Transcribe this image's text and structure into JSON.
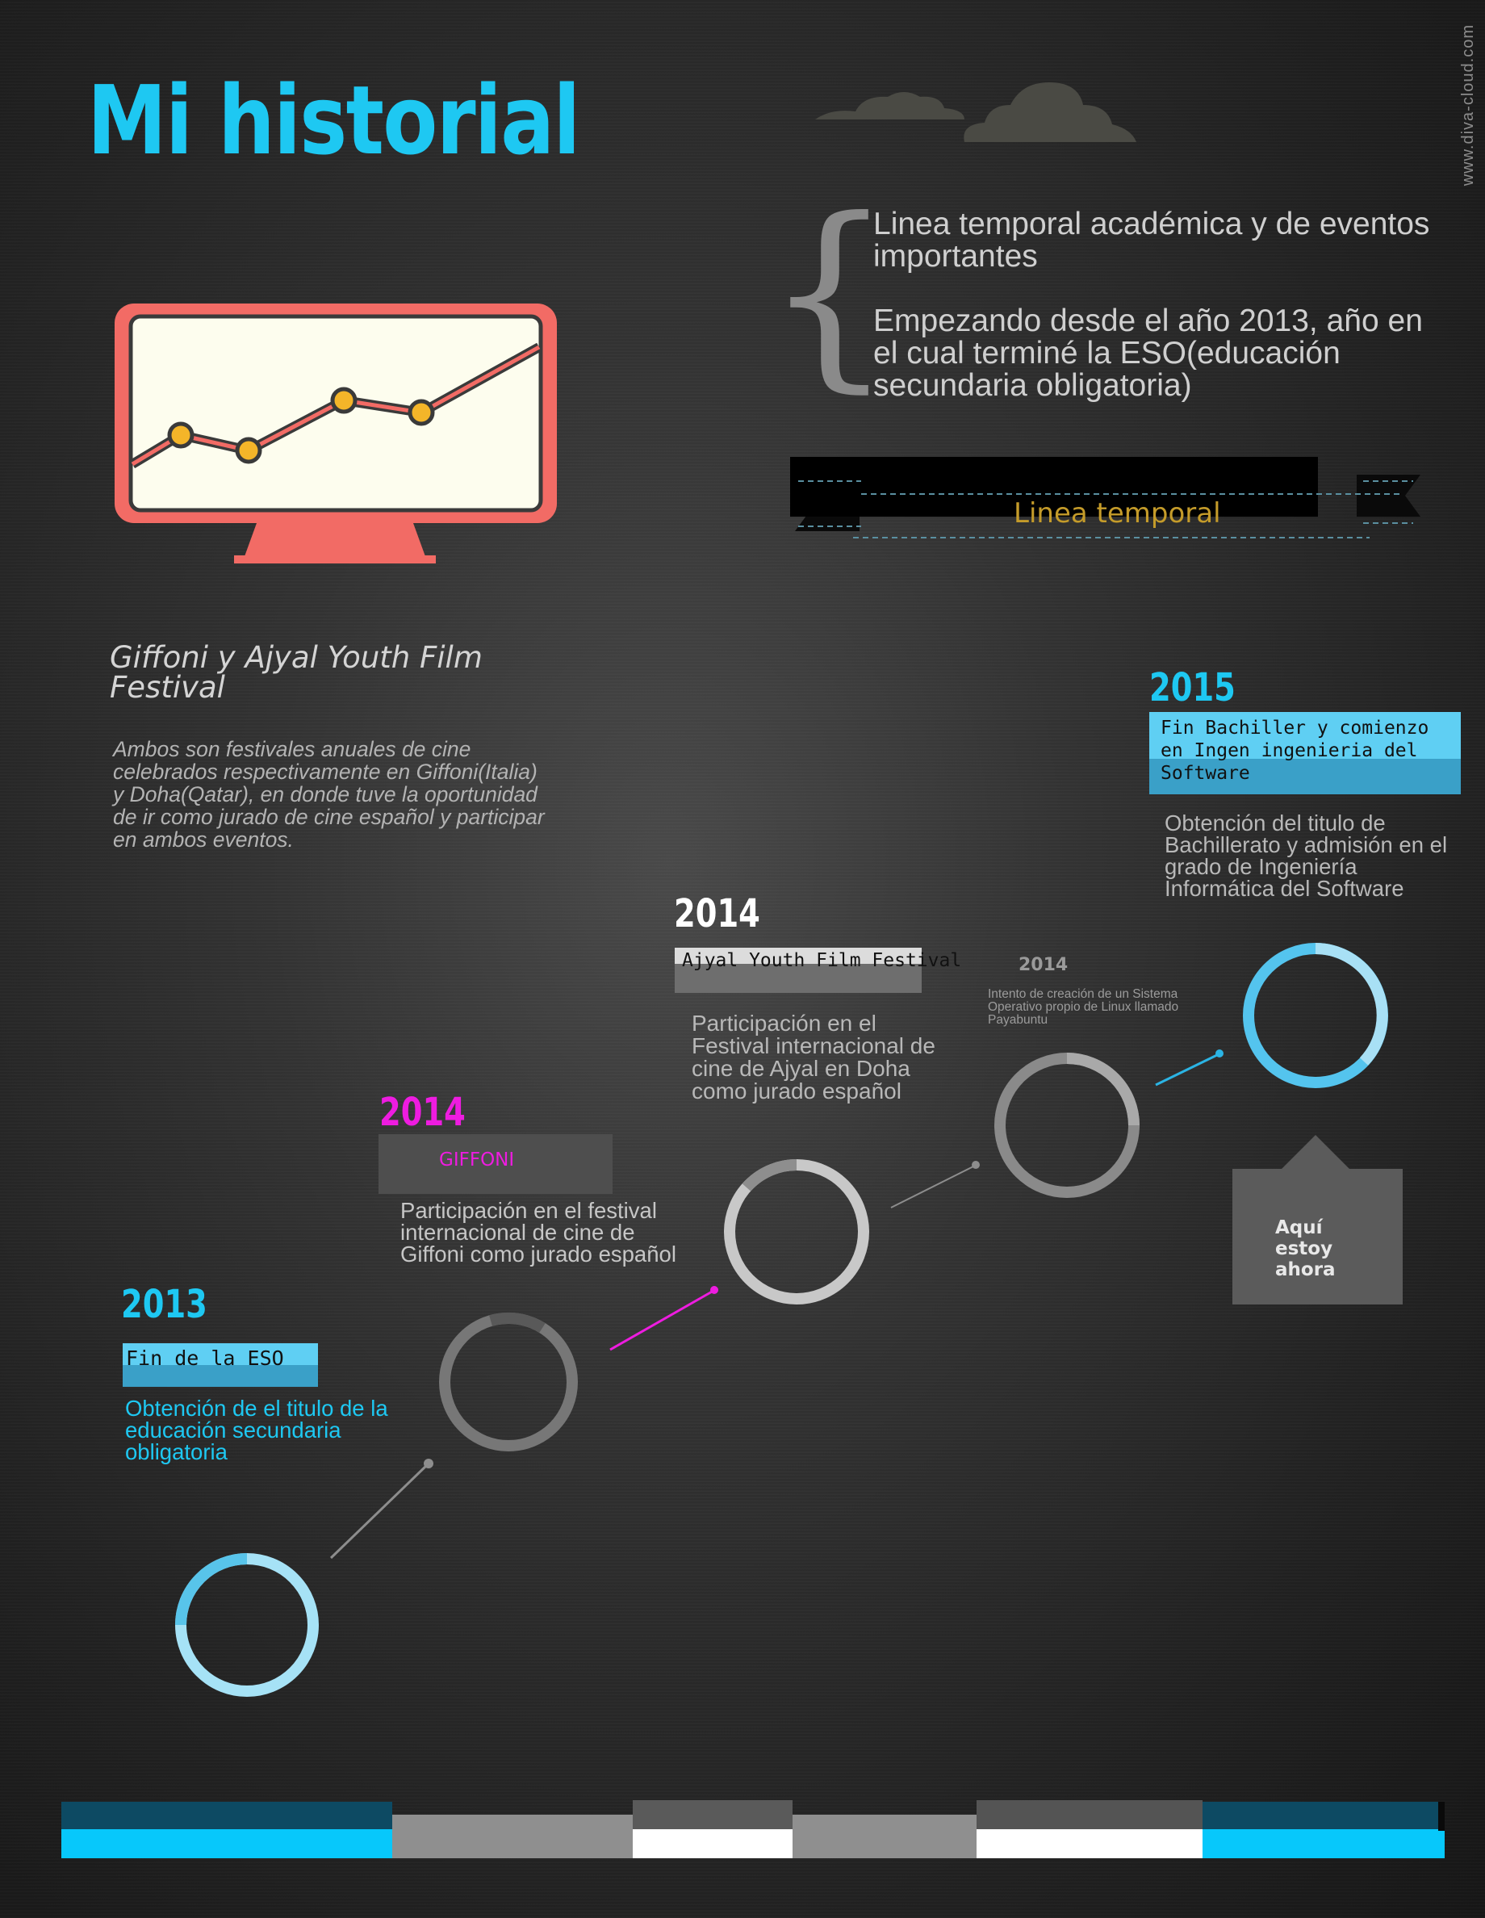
{
  "header": {
    "title": "Mi historial",
    "watermark": "www.diva-cloud.com"
  },
  "intro": {
    "line1": "Linea temporal académica y de eventos importantes",
    "line2": "Empezando desde el año 2013, año en el cual terminé la ESO(educación secundaria obligatoria)"
  },
  "ribbon": {
    "label": "Linea temporal"
  },
  "festival": {
    "title": "Giffoni y Ajyal Youth Film Festival",
    "text": "Ambos son festivales anuales de cine celebrados respectivamente en Giffoni(Italia) y Doha(Qatar), en donde tuve la oportunidad de ir como jurado de cine español y participar en ambos eventos."
  },
  "timeline": {
    "e2013": {
      "year": "2013",
      "label": "Fin de la ESO",
      "text": "Obtención de el titulo de la educación secundaria obligatoria"
    },
    "e2014_giffoni": {
      "year": "2014",
      "label": "GIFFONI",
      "text": "Participación en el festival internacional de cine de Giffoni como jurado español"
    },
    "e2014_ajyal": {
      "year": "2014",
      "label": "Ajyal Youth Film Festival",
      "text": "Participación en el Festival internacional de cine de Ajyal en Doha como jurado español"
    },
    "e2014_os": {
      "year": "2014",
      "text": "Intento de creación de un Sistema Operativo propio de Linux llamado Payabuntu"
    },
    "e2015": {
      "year": "2015",
      "label": "Fin Bachiller y comienzo en Ingen ingenieria del Software",
      "text": "Obtención del titulo de Bachillerato y admisión en el grado de Ingeniería Informática del Software"
    },
    "now": {
      "text": "Aquí estoy ahora"
    }
  },
  "colors": {
    "accent_cyan": "#1ec8f2",
    "accent_magenta": "#ee1ce0",
    "monitor": "#f26b65",
    "monitor_screen": "#fdfdee",
    "chart_dots": "#f4b529",
    "ribbon_text": "#c49b2a",
    "year_2014_ajyal": "#ffffff",
    "year_2014_os": "#9a9a9a"
  },
  "icons": {
    "monitor": "line-chart-monitor-icon",
    "clouds": "cloud-icon"
  }
}
